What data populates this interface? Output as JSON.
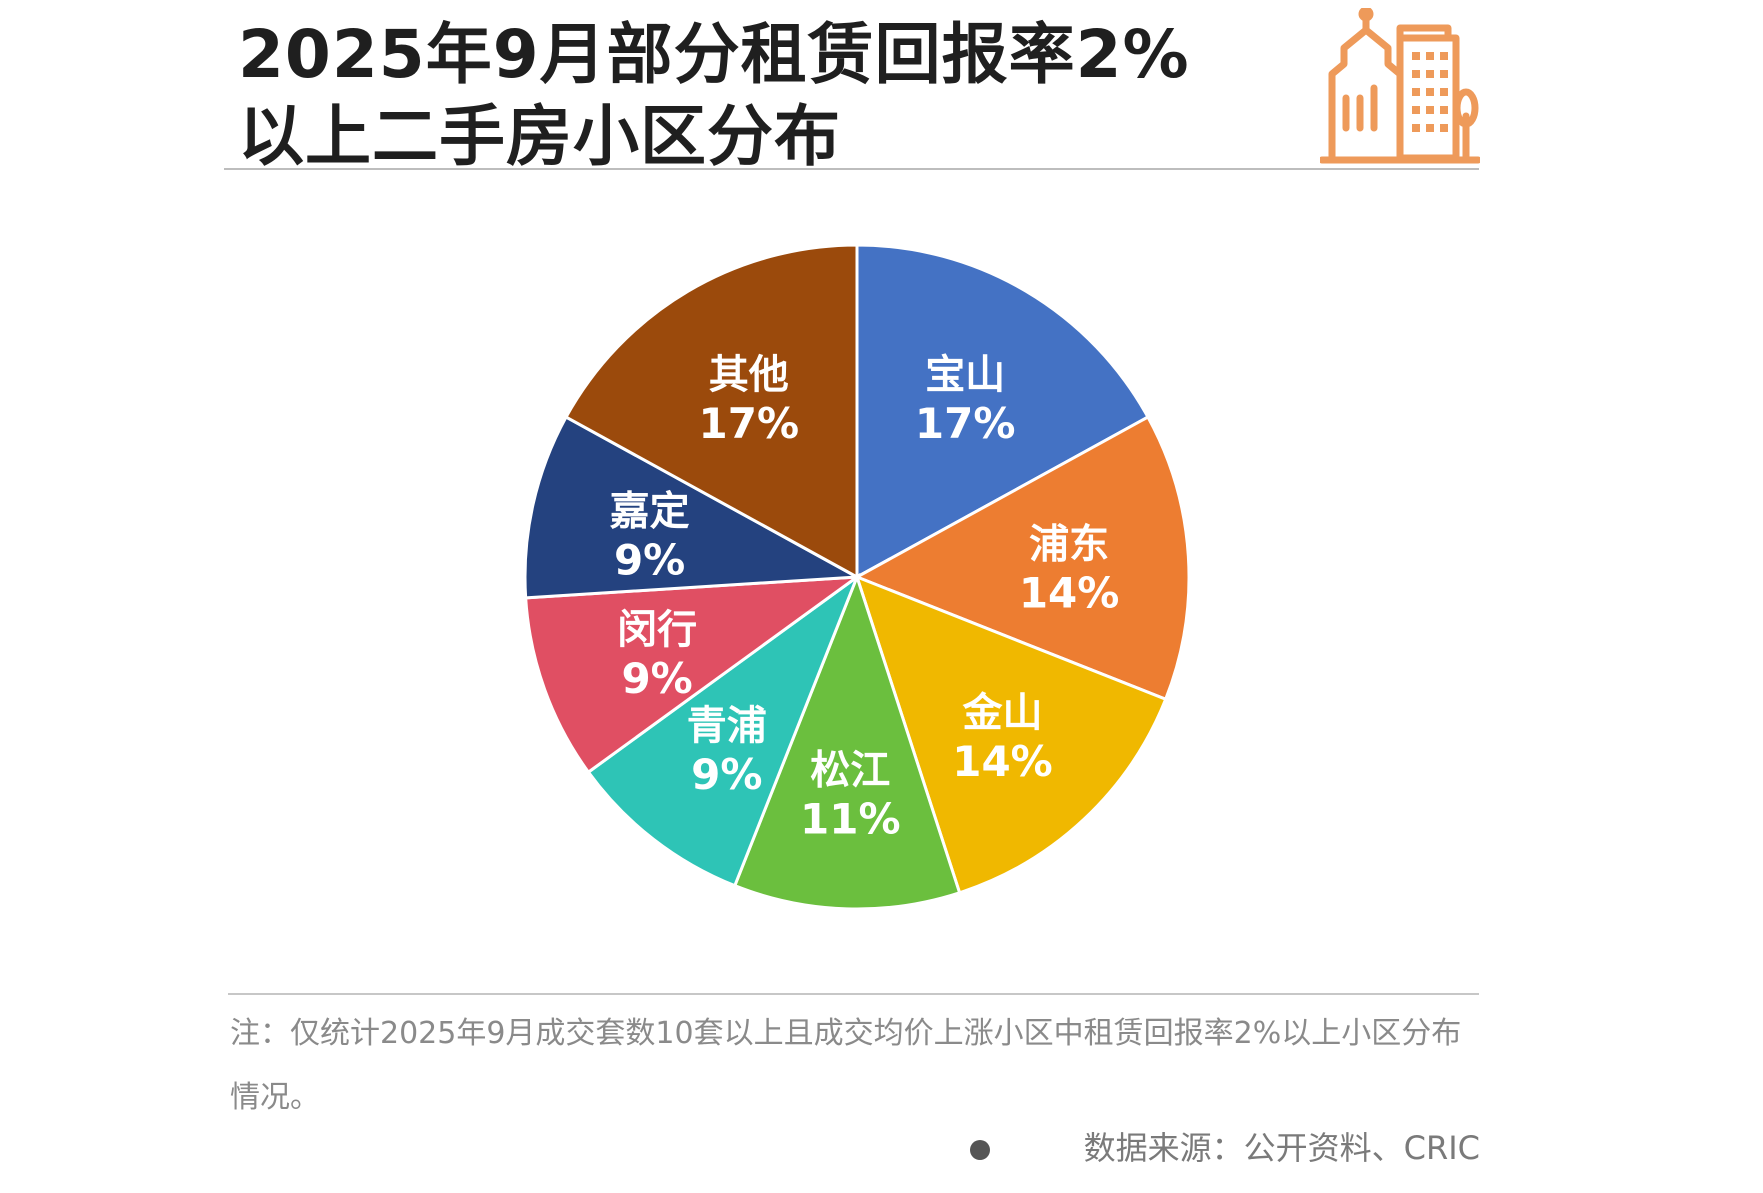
{
  "title_lines": [
    "2025年9月部分租赁回报率2%",
    "以上二手房小区分布"
  ],
  "header_icon": "building-icon",
  "chart_data": {
    "type": "pie",
    "title": "2025年9月部分租赁回报率2%以上二手房小区分布",
    "start_angle_deg": 0,
    "direction": "clockwise",
    "slices": [
      {
        "label": "宝山",
        "value": 17,
        "display": "17%",
        "color": "#4472C4"
      },
      {
        "label": "浦东",
        "value": 14,
        "display": "14%",
        "color": "#ED7D31"
      },
      {
        "label": "金山",
        "value": 14,
        "display": "14%",
        "color": "#F0B800"
      },
      {
        "label": "松江",
        "value": 11,
        "display": "11%",
        "color": "#6BBF3E"
      },
      {
        "label": "青浦",
        "value": 9,
        "display": "9%",
        "color": "#2EC4B6"
      },
      {
        "label": "闵行",
        "value": 9,
        "display": "9%",
        "color": "#E04F63"
      },
      {
        "label": "嘉定",
        "value": 9,
        "display": "9%",
        "color": "#24427F"
      },
      {
        "label": "其他",
        "value": 17,
        "display": "17%",
        "color": "#9B4A0C"
      }
    ],
    "label_color": "#ffffff"
  },
  "footer": {
    "note": "注：仅统计2025年9月成交套数10套以上且成交均价上涨小区中租赁回报率2%以上小区分布情况。",
    "source": "数据来源：公开资料、CRIC"
  },
  "colors": {
    "accent_icon": "#EE9A5A",
    "rule": "#bdbdbd",
    "note_text": "#8a8a8a"
  }
}
